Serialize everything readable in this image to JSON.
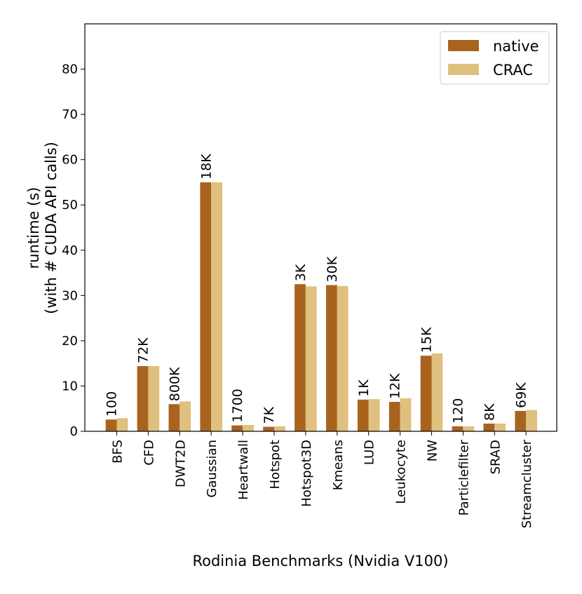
{
  "chart_data": {
    "type": "bar",
    "xlabel": "Rodinia Benchmarks (Nvidia V100)",
    "ylabel_line1": "runtime (s)",
    "ylabel_line2": "(with # CUDA API calls)",
    "ylim": [
      0,
      90
    ],
    "yticks": [
      0,
      10,
      20,
      30,
      40,
      50,
      60,
      70,
      80
    ],
    "grid": false,
    "legend_position": "top-right",
    "categories": [
      "BFS",
      "CFD",
      "DWT2D",
      "Gaussian",
      "Heartwall",
      "Hotspot",
      "Hotspot3D",
      "Kmeans",
      "LUD",
      "Leukocyte",
      "NW",
      "Particlefilter",
      "SRAD",
      "Streamcluster"
    ],
    "series": [
      {
        "name": "native",
        "color": "#a8641f",
        "values": [
          2.6,
          14.4,
          6.0,
          55.0,
          1.3,
          1.0,
          32.5,
          32.3,
          7.0,
          6.5,
          16.7,
          1.1,
          1.7,
          4.5
        ]
      },
      {
        "name": "CRAC",
        "color": "#e0c07e",
        "values": [
          2.9,
          14.4,
          6.6,
          55.0,
          1.4,
          1.1,
          32.0,
          32.1,
          7.1,
          7.3,
          17.2,
          1.1,
          1.7,
          4.7
        ]
      }
    ],
    "annotations": [
      "100",
      "72K",
      "800K",
      "18K",
      "1700",
      "7K",
      "3K",
      "30K",
      "1K",
      "12K",
      "15K",
      "120",
      "8K",
      "69K"
    ]
  }
}
